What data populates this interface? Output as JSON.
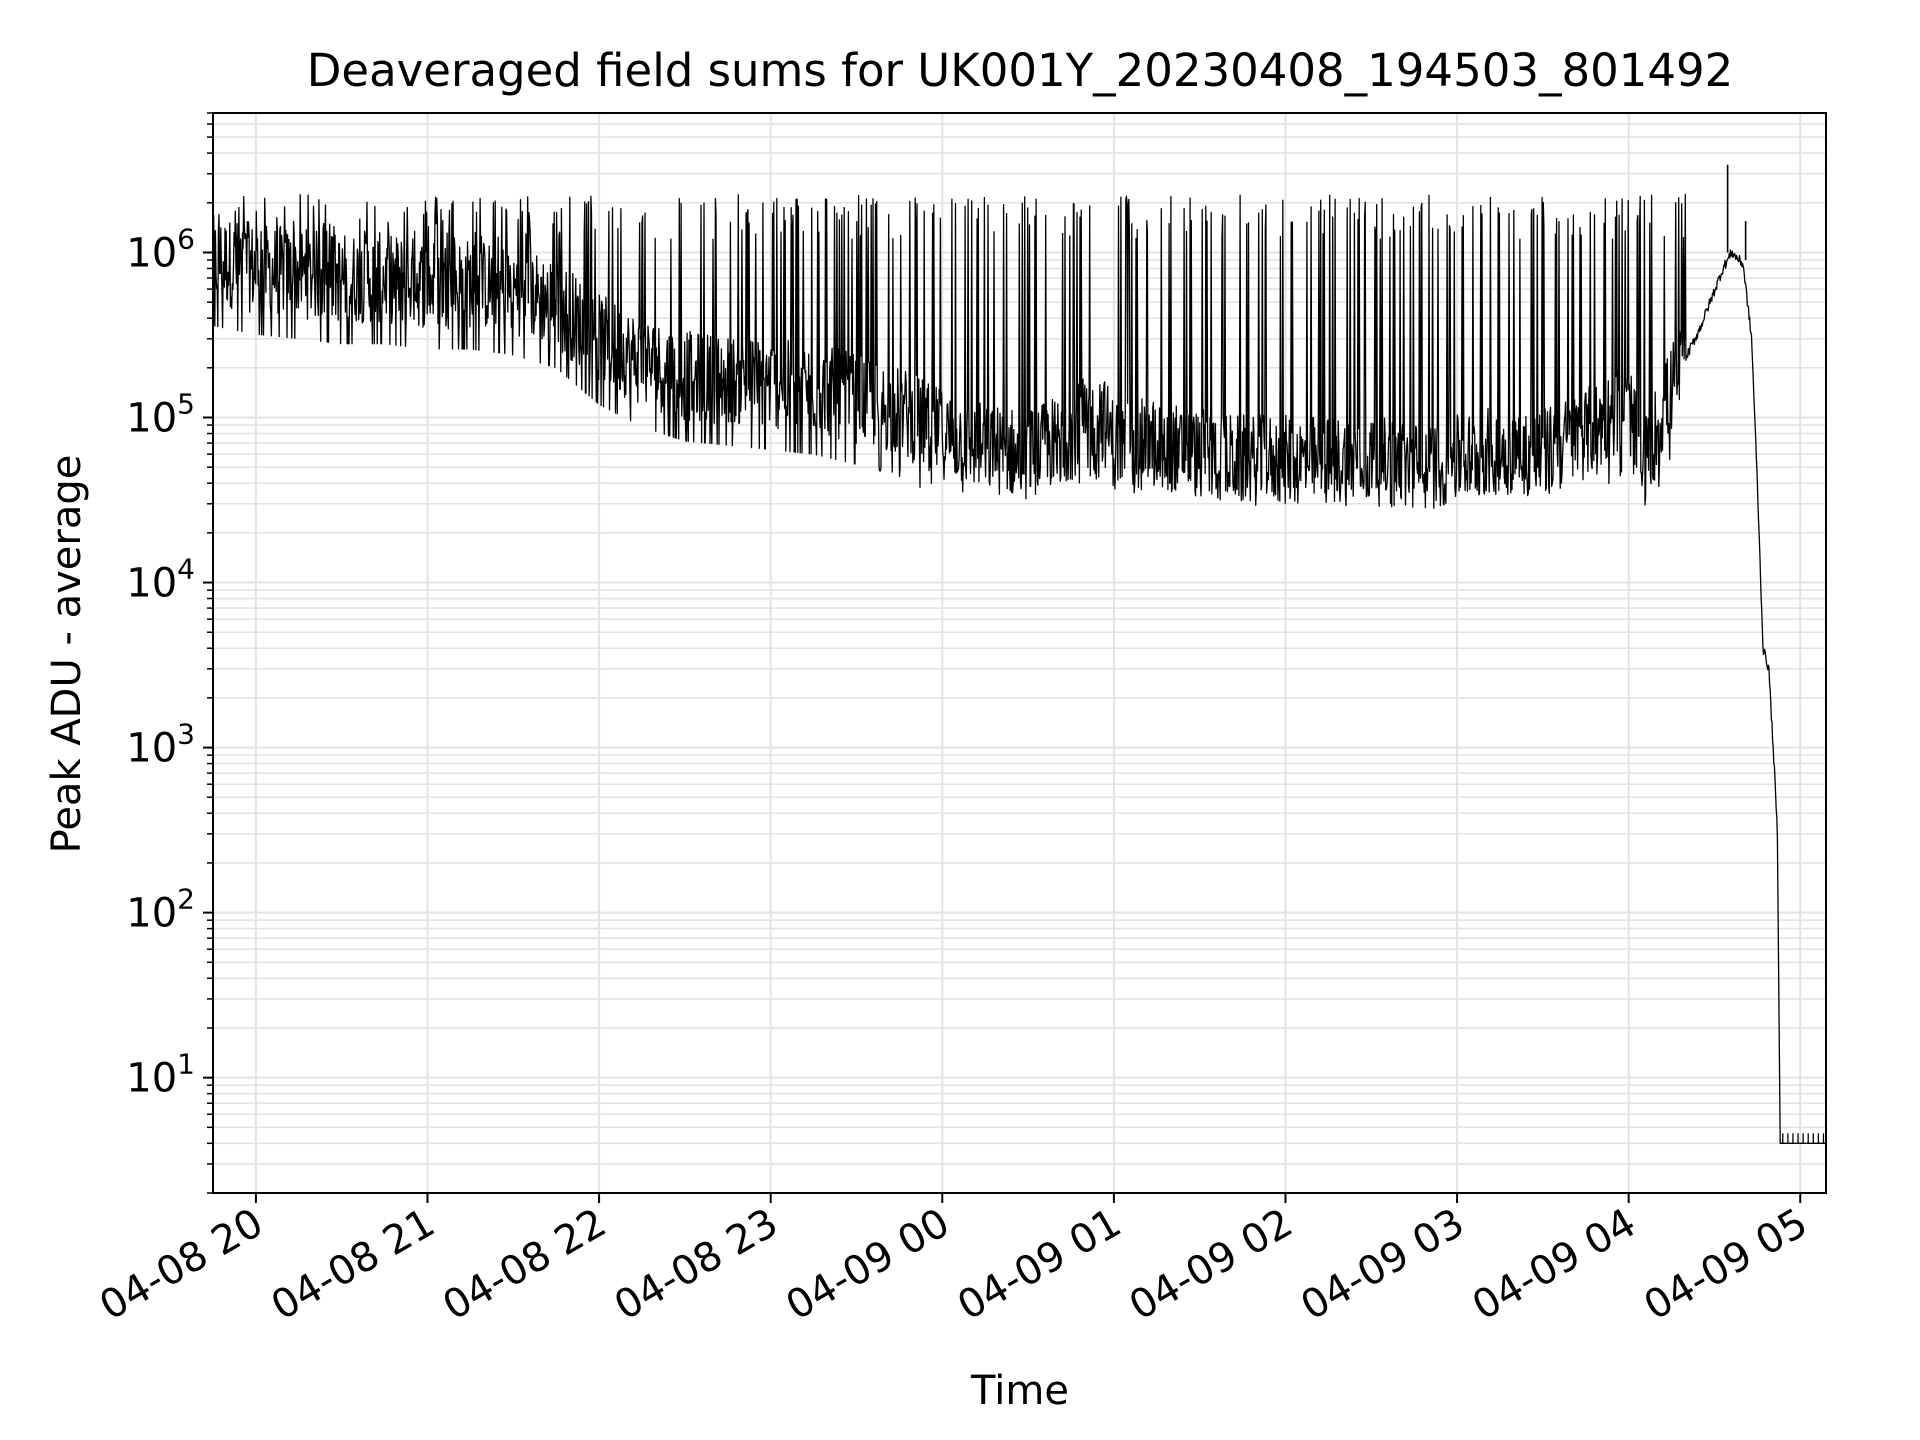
{
  "chart_data": {
    "type": "line",
    "title": "Deaveraged field sums for UK001Y_20230408_194503_801492",
    "xlabel": "Time",
    "ylabel": "Peak ADU - average",
    "yscale": "log",
    "ylim": [
      2,
      7000000
    ],
    "xlim": [
      "2023-04-08 19:45",
      "2023-04-09 05:09"
    ],
    "grid": true,
    "legend": "none",
    "line_color": "#000000",
    "grid_color": "#e3e3e3",
    "x_ticks": [
      {
        "time": "2023-04-08 20:00",
        "label": "04-08 20"
      },
      {
        "time": "2023-04-08 21:00",
        "label": "04-08 21"
      },
      {
        "time": "2023-04-08 22:00",
        "label": "04-08 22"
      },
      {
        "time": "2023-04-08 23:00",
        "label": "04-08 23"
      },
      {
        "time": "2023-04-09 00:00",
        "label": "04-09 00"
      },
      {
        "time": "2023-04-09 01:00",
        "label": "04-09 01"
      },
      {
        "time": "2023-04-09 02:00",
        "label": "04-09 02"
      },
      {
        "time": "2023-04-09 03:00",
        "label": "04-09 03"
      },
      {
        "time": "2023-04-09 04:00",
        "label": "04-09 04"
      },
      {
        "time": "2023-04-09 05:00",
        "label": "04-09 05"
      }
    ],
    "y_ticks": [
      {
        "value": 10,
        "base": "10",
        "exp": "1"
      },
      {
        "value": 100,
        "base": "10",
        "exp": "2"
      },
      {
        "value": 1000,
        "base": "10",
        "exp": "3"
      },
      {
        "value": 10000,
        "base": "10",
        "exp": "4"
      },
      {
        "value": 100000,
        "base": "10",
        "exp": "5"
      },
      {
        "value": 1000000,
        "base": "10",
        "exp": "6"
      }
    ],
    "series": [
      {
        "points": [
          [
            "2023-04-08 19:45",
            900000
          ],
          [
            "2023-04-08 20:00",
            800000
          ],
          [
            "2023-04-08 20:15",
            750000
          ],
          [
            "2023-04-08 20:30",
            700000
          ],
          [
            "2023-04-08 20:45",
            700000
          ],
          [
            "2023-04-08 21:00",
            650000
          ],
          [
            "2023-04-08 21:15",
            650000
          ],
          [
            "2023-04-08 21:30",
            600000
          ],
          [
            "2023-04-08 21:45",
            500000
          ],
          [
            "2023-04-08 22:00",
            300000
          ],
          [
            "2023-04-08 22:15",
            220000
          ],
          [
            "2023-04-08 22:30",
            180000
          ],
          [
            "2023-04-08 22:45",
            170000
          ],
          [
            "2023-04-08 23:00",
            160000
          ],
          [
            "2023-04-08 23:15",
            150000
          ],
          [
            "2023-04-08 23:30",
            130000
          ],
          [
            "2023-04-08 23:45",
            110000
          ],
          [
            "2023-04-09 00:00",
            80000
          ],
          [
            "2023-04-09 00:15",
            65000
          ],
          [
            "2023-04-09 00:30",
            60000
          ],
          [
            "2023-04-09 00:45",
            80000
          ],
          [
            "2023-04-09 00:55",
            110000
          ],
          [
            "2023-04-09 01:00",
            70000
          ],
          [
            "2023-04-09 01:15",
            70000
          ],
          [
            "2023-04-09 01:30",
            60000
          ],
          [
            "2023-04-09 01:45",
            55000
          ],
          [
            "2023-04-09 02:00",
            55000
          ],
          [
            "2023-04-09 02:15",
            55000
          ],
          [
            "2023-04-09 02:30",
            55000
          ],
          [
            "2023-04-09 02:45",
            50000
          ],
          [
            "2023-04-09 03:00",
            55000
          ],
          [
            "2023-04-09 03:15",
            65000
          ],
          [
            "2023-04-09 03:30",
            60000
          ],
          [
            "2023-04-09 03:45",
            80000
          ],
          [
            "2023-04-09 04:00",
            120000
          ],
          [
            "2023-04-09 04:05",
            50000
          ],
          [
            "2023-04-09 04:15",
            150000
          ],
          [
            "2023-04-09 04:25",
            350000
          ],
          [
            "2023-04-09 04:33",
            800000
          ],
          [
            "2023-04-09 04:36",
            1000000
          ],
          [
            "2023-04-09 04:40",
            850000
          ],
          [
            "2023-04-09 04:43",
            300000
          ],
          [
            "2023-04-09 04:45",
            40000
          ],
          [
            "2023-04-09 04:47",
            4000
          ],
          [
            "2023-04-09 04:49",
            3000
          ],
          [
            "2023-04-09 04:51",
            700
          ],
          [
            "2023-04-09 04:52",
            300
          ],
          [
            "2023-04-09 04:53",
            4
          ],
          [
            "2023-04-09 05:09",
            4
          ]
        ],
        "upper_spikes": 1500000,
        "lower_dips": 40000
      }
    ]
  }
}
